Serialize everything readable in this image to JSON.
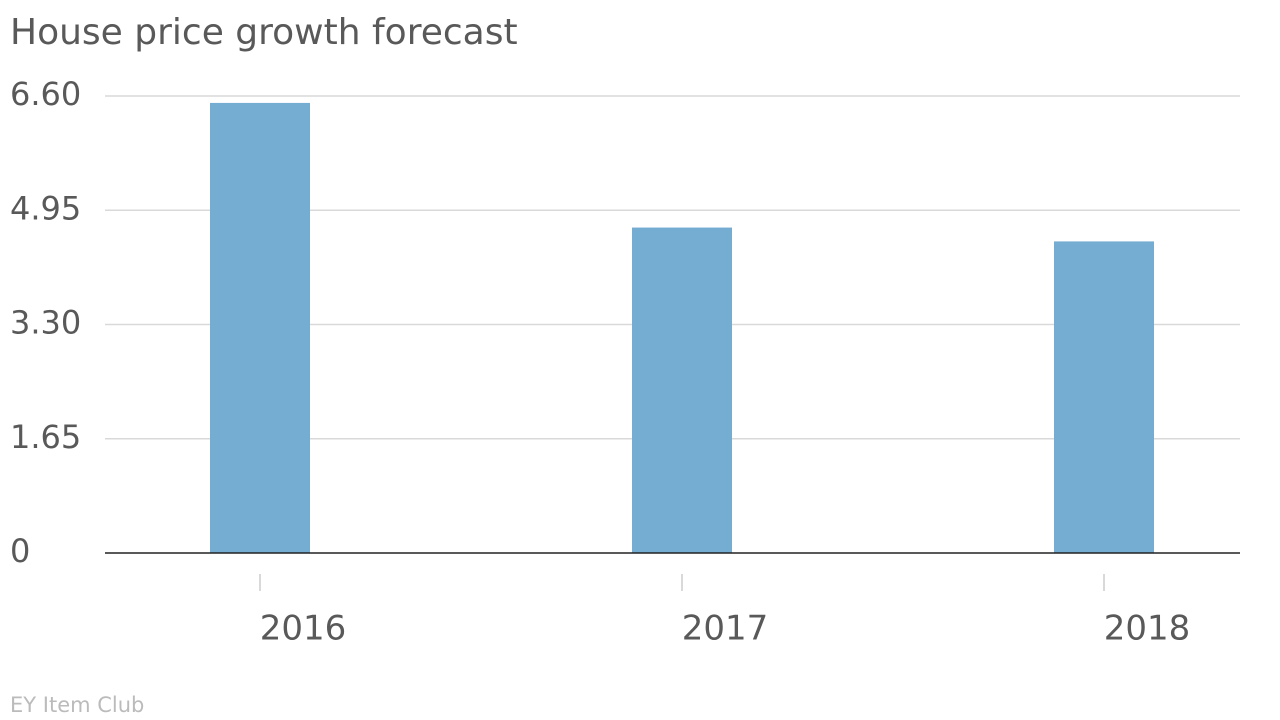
{
  "chart_data": {
    "type": "bar",
    "title": "House price growth forecast",
    "source": "EY Item Club",
    "categories": [
      "2016",
      "2017",
      "2018"
    ],
    "values": [
      6.5,
      4.7,
      4.5
    ],
    "color": "#74acd2",
    "ylim": [
      0,
      6.6
    ],
    "yticks": [
      0,
      1.65,
      {
        "value": 3.3,
        "label": "3.30"
      },
      4.95,
      {
        "value": 6.6,
        "label": "6.60"
      }
    ],
    "grid": true
  }
}
